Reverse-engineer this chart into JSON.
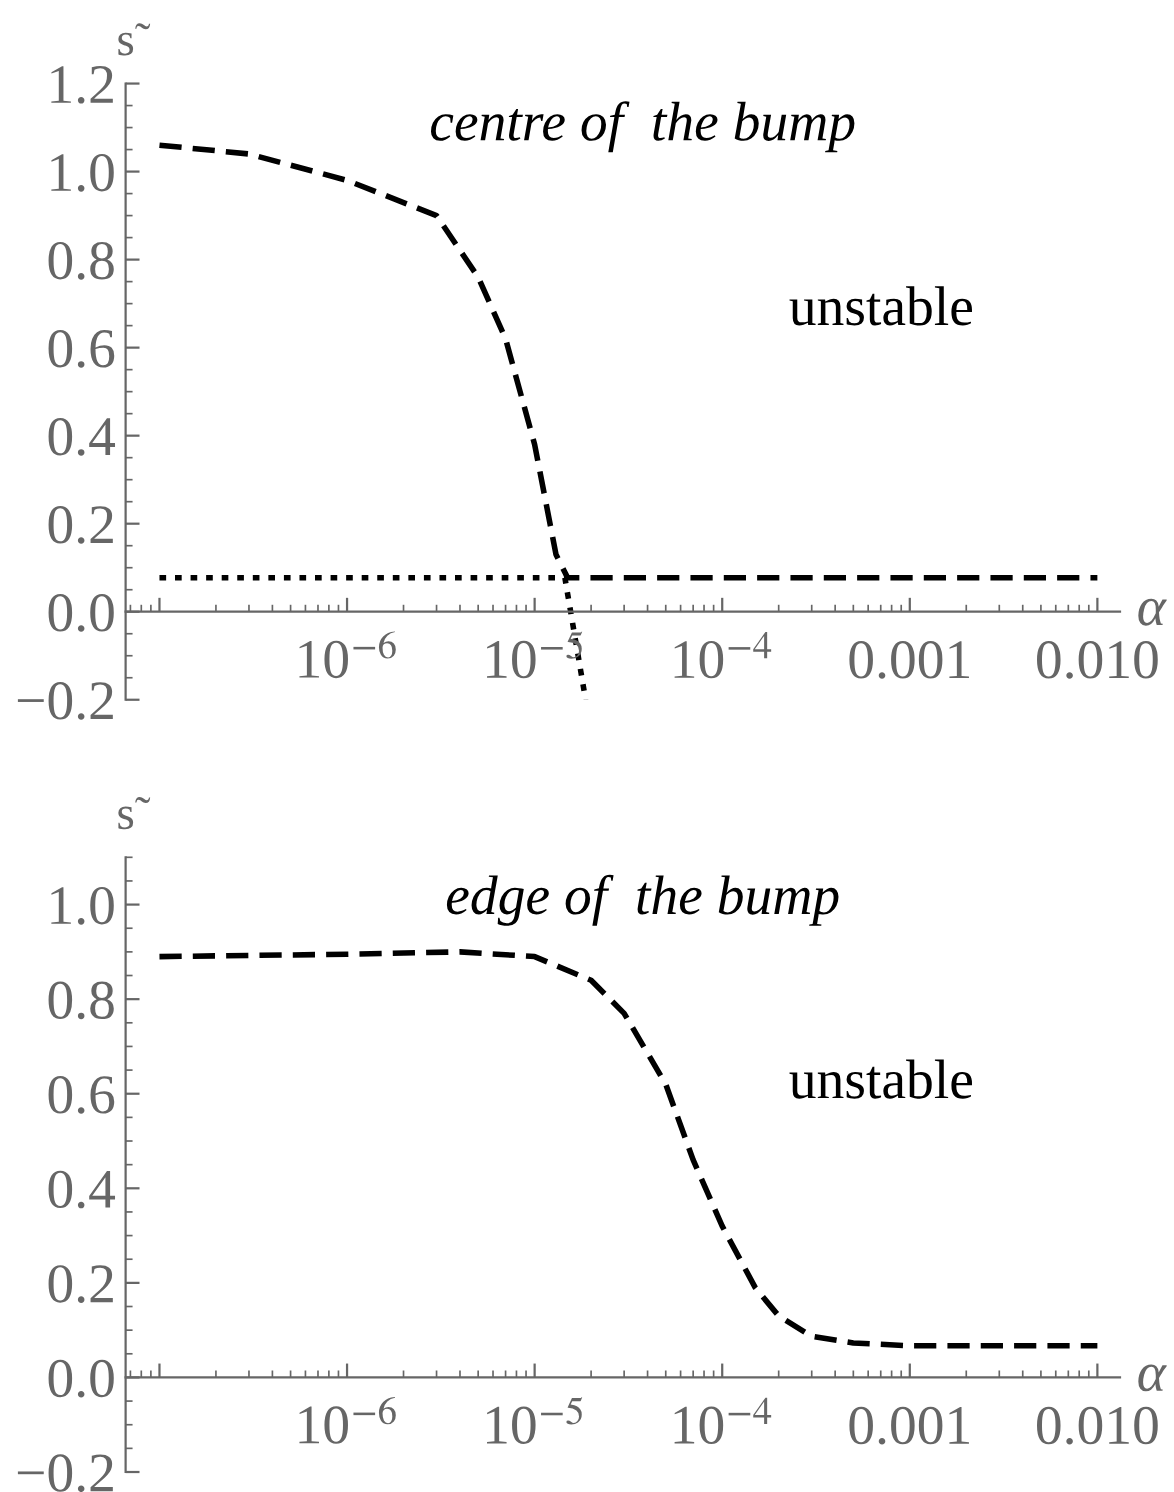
{
  "chart_data": [
    {
      "type": "line",
      "xlabel": "α",
      "ylabel": "s̃",
      "log": "x",
      "xlim": [
        6.6e-08,
        0.0132
      ],
      "ylim": [
        -0.2,
        1.2
      ],
      "xticks": [
        {
          "value": 1e-07,
          "label": null
        },
        {
          "value": 1e-06,
          "label": "10$^{−6}$"
        },
        {
          "value": 1e-05,
          "label": "10$^{−5}$"
        },
        {
          "value": 0.0001,
          "label": "10$^{−4}$"
        },
        0.001,
        {
          "value": 0.01,
          "label": "0.010"
        }
      ],
      "yticks": [
        {
          "value": -0.2,
          "label": "−0.2"
        },
        {
          "value": 0,
          "label": "0.0"
        },
        0.2,
        0.4,
        0.6,
        0.8,
        {
          "value": 1,
          "label": "1.0"
        },
        1.2
      ],
      "grid": false,
      "legend": false,
      "annotations": [
        "centre of  the bump",
        "unstable"
      ],
      "series": [
        {
          "color": "#000000",
          "line_style": "dashed",
          "x": [
            1e-07,
            3e-07,
            1e-06,
            3e-06,
            5e-06,
            7e-06,
            1e-05,
            1.3e-05,
            1.5e-05,
            0.01
          ],
          "values": [
            1.06,
            1.04,
            0.98,
            0.9,
            0.76,
            0.62,
            0.38,
            0.13,
            0.077,
            0.077
          ]
        },
        {
          "color": "#000000",
          "line_style": "dotted",
          "x": [
            1e-07,
            1.45e-05,
            1.87e-05
          ],
          "values": [
            0.077,
            0.077,
            -0.2
          ]
        }
      ]
    },
    {
      "type": "line",
      "xlabel": "α",
      "ylabel": "s̃",
      "log": "x",
      "xlim": [
        6.6e-08,
        0.0132
      ],
      "ylim": [
        -0.2,
        1.1
      ],
      "xticks": [
        {
          "value": 1e-07,
          "label": null
        },
        {
          "value": 1e-06,
          "label": "10$^{−6}$"
        },
        {
          "value": 1e-05,
          "label": "10$^{−5}$"
        },
        {
          "value": 0.0001,
          "label": "10$^{−4}$"
        },
        0.001,
        {
          "value": 0.01,
          "label": "0.010"
        }
      ],
      "yticks": [
        {
          "value": -0.2,
          "label": "−0.2"
        },
        {
          "value": 0,
          "label": "0.0"
        },
        0.2,
        0.4,
        0.6,
        0.8,
        {
          "value": 1,
          "label": "1.0"
        }
      ],
      "grid": false,
      "legend": false,
      "annotations": [
        "edge of  the bump",
        "unstable"
      ],
      "series": [
        {
          "color": "#000000",
          "line_style": "dashed",
          "x": [
            1e-07,
            1e-06,
            4e-06,
            1e-05,
            2e-05,
            3e-05,
            5e-05,
            7e-05,
            0.0001,
            0.00015,
            0.0002,
            0.0003,
            0.0005,
            0.001,
            0.01
          ],
          "values": [
            0.89,
            0.895,
            0.9,
            0.89,
            0.84,
            0.77,
            0.62,
            0.46,
            0.32,
            0.19,
            0.13,
            0.087,
            0.073,
            0.067,
            0.067
          ]
        }
      ]
    }
  ]
}
